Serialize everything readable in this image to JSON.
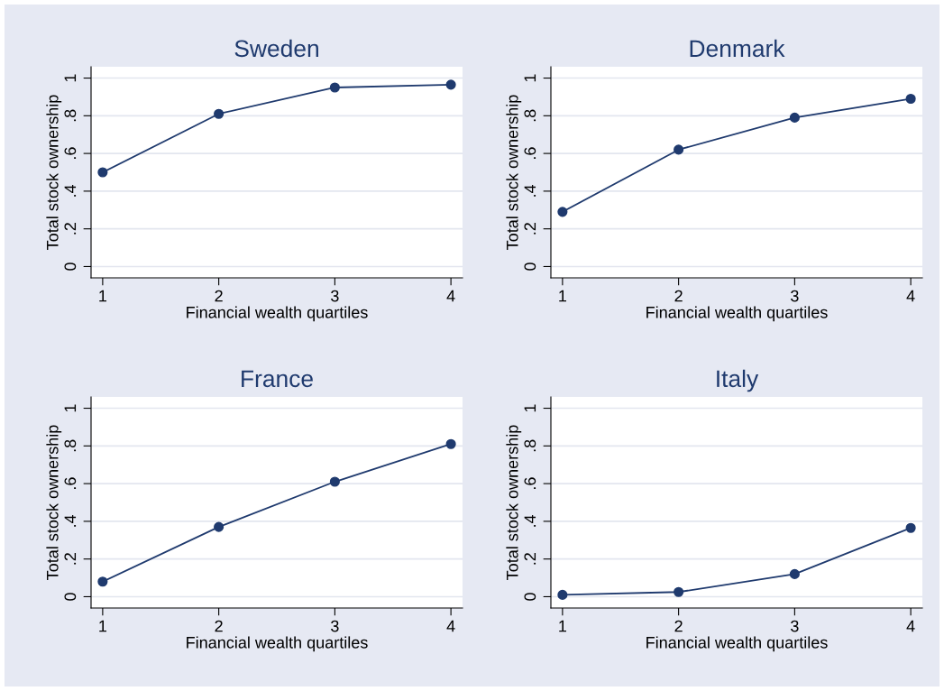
{
  "chart_data": [
    {
      "type": "line",
      "title": "Sweden",
      "xlabel": "Financial wealth quartiles",
      "ylabel": "Total stock ownership",
      "x": [
        1,
        2,
        3,
        4
      ],
      "series": [
        {
          "color": "#1f3a6e",
          "values": [
            0.5,
            0.81,
            0.95,
            0.965
          ]
        }
      ],
      "marker": "circle",
      "line_style": "solid",
      "grid": "y",
      "legend": false,
      "xlim": [
        0.9,
        4.1
      ],
      "ylim": [
        -0.06,
        1.06
      ],
      "xticks": [
        1,
        2,
        3,
        4
      ],
      "yticks": [
        0,
        {
          "value": 0.2,
          "label": ".2"
        },
        {
          "value": 0.4,
          "label": ".4"
        },
        {
          "value": 0.6,
          "label": ".6"
        },
        {
          "value": 0.8,
          "label": ".8"
        },
        1
      ]
    },
    {
      "type": "line",
      "title": "Denmark",
      "xlabel": "Financial wealth quartiles",
      "ylabel": "Total stock ownership",
      "x": [
        1,
        2,
        3,
        4
      ],
      "series": [
        {
          "color": "#1f3a6e",
          "values": [
            0.29,
            0.62,
            0.79,
            0.89
          ]
        }
      ],
      "marker": "circle",
      "line_style": "solid",
      "grid": "y",
      "legend": false,
      "xlim": [
        0.9,
        4.1
      ],
      "ylim": [
        -0.06,
        1.06
      ],
      "xticks": [
        1,
        2,
        3,
        4
      ],
      "yticks": [
        0,
        {
          "value": 0.2,
          "label": ".2"
        },
        {
          "value": 0.4,
          "label": ".4"
        },
        {
          "value": 0.6,
          "label": ".6"
        },
        {
          "value": 0.8,
          "label": ".8"
        },
        1
      ]
    },
    {
      "type": "line",
      "title": "France",
      "xlabel": "Financial wealth quartiles",
      "ylabel": "Total stock ownership",
      "x": [
        1,
        2,
        3,
        4
      ],
      "series": [
        {
          "color": "#1f3a6e",
          "values": [
            0.08,
            0.37,
            0.61,
            0.81
          ]
        }
      ],
      "marker": "circle",
      "line_style": "solid",
      "grid": "y",
      "legend": false,
      "xlim": [
        0.9,
        4.1
      ],
      "ylim": [
        -0.06,
        1.06
      ],
      "xticks": [
        1,
        2,
        3,
        4
      ],
      "yticks": [
        0,
        {
          "value": 0.2,
          "label": ".2"
        },
        {
          "value": 0.4,
          "label": ".4"
        },
        {
          "value": 0.6,
          "label": ".6"
        },
        {
          "value": 0.8,
          "label": ".8"
        },
        1
      ]
    },
    {
      "type": "line",
      "title": "Italy",
      "xlabel": "Financial wealth quartiles",
      "ylabel": "Total stock ownership",
      "x": [
        1,
        2,
        3,
        4
      ],
      "series": [
        {
          "color": "#1f3a6e",
          "values": [
            0.01,
            0.025,
            0.12,
            0.365
          ]
        }
      ],
      "marker": "circle",
      "line_style": "solid",
      "grid": "y",
      "legend": false,
      "xlim": [
        0.9,
        4.1
      ],
      "ylim": [
        -0.06,
        1.06
      ],
      "xticks": [
        1,
        2,
        3,
        4
      ],
      "yticks": [
        0,
        {
          "value": 0.2,
          "label": ".2"
        },
        {
          "value": 0.4,
          "label": ".4"
        },
        {
          "value": 0.6,
          "label": ".6"
        },
        {
          "value": 0.8,
          "label": ".8"
        },
        1
      ]
    }
  ]
}
